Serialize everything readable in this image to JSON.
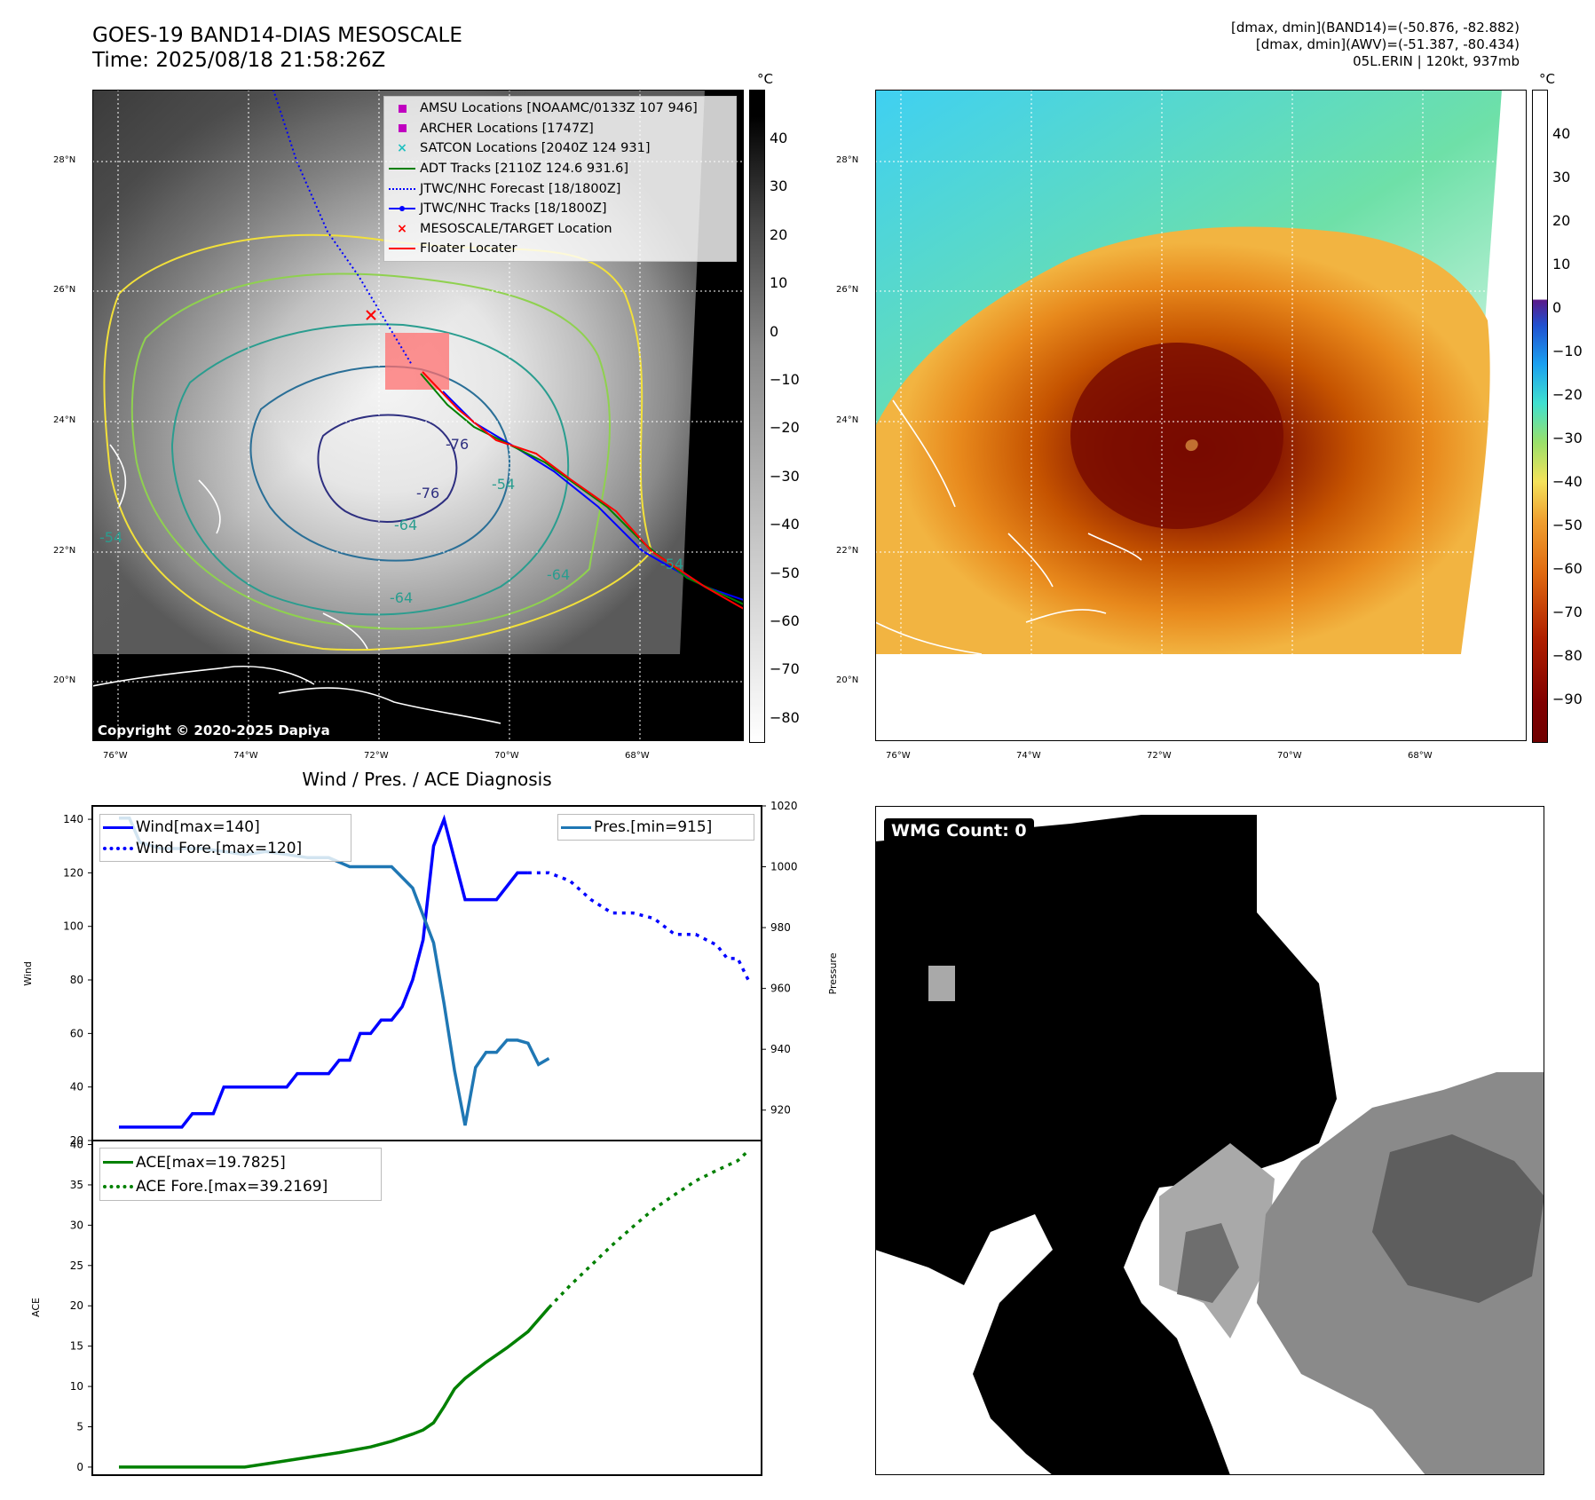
{
  "header": {
    "title_line1": "GOES-19 BAND14-DIAS MESOSCALE",
    "title_line2": "Time: 2025/08/18 21:58:26Z",
    "stats_line1": "[dmax, dmin](BAND14)=(-50.876, -82.882)",
    "stats_line2": "[dmax, dmin](AWV)=(-51.387, -80.434)",
    "stats_line3": "05L.ERIN | 120kt, 937mb"
  },
  "map_left": {
    "copyright": "Copyright © 2020-2025 Dapiya",
    "lat_labels": [
      "28°N",
      "26°N",
      "24°N",
      "22°N",
      "20°N"
    ],
    "lon_labels": [
      "76°W",
      "74°W",
      "72°W",
      "70°W",
      "68°W"
    ],
    "contour_labels": [
      "-76",
      "-76",
      "-64",
      "-64",
      "-64",
      "-54",
      "-54",
      "-54"
    ],
    "legend": [
      {
        "label": "AMSU Locations [NOAAMC/0133Z 107 946]",
        "symbol": "square",
        "color": "#c000c0"
      },
      {
        "label": "ARCHER Locations [1747Z]",
        "symbol": "square",
        "color": "#c000c0"
      },
      {
        "label": "SATCON Locations [2040Z 124 931]",
        "symbol": "x",
        "color": "#20c0c0"
      },
      {
        "label": "ADT Tracks [2110Z 124.6 931.6]",
        "symbol": "line",
        "color": "#008000"
      },
      {
        "label": "JTWC/NHC Forecast [18/1800Z]",
        "symbol": "dotted",
        "color": "#0000ff"
      },
      {
        "label": "JTWC/NHC Tracks [18/1800Z]",
        "symbol": "line-dot",
        "color": "#0000ff"
      },
      {
        "label": "MESOSCALE/TARGET Location",
        "symbol": "x",
        "color": "#ff0000"
      },
      {
        "label": "Floater Locater",
        "symbol": "line",
        "color": "#ff0000"
      }
    ],
    "colorbar": {
      "unit": "°C",
      "ticks": [
        "40",
        "30",
        "20",
        "10",
        "0",
        "−10",
        "−20",
        "−30",
        "−40",
        "−50",
        "−60",
        "−70",
        "−80"
      ]
    }
  },
  "map_right": {
    "lat_labels": [
      "28°N",
      "26°N",
      "24°N",
      "22°N",
      "20°N"
    ],
    "lon_labels": [
      "76°W",
      "74°W",
      "72°W",
      "70°W",
      "68°W"
    ],
    "colorbar": {
      "unit": "°C",
      "ticks": [
        "40",
        "30",
        "20",
        "10",
        "0",
        "−10",
        "−20",
        "−30",
        "−40",
        "−50",
        "−60",
        "−70",
        "−80",
        "−90"
      ]
    }
  },
  "wmg": {
    "label": "WMG Count: 0"
  },
  "chart_data": [
    {
      "type": "line",
      "title": "Wind / Pres. / ACE Diagnosis",
      "ylabel": "Wind",
      "ylabel_right": "Pressure",
      "ylim": [
        20,
        145
      ],
      "ylim_right": [
        910,
        1020
      ],
      "yticks": [
        "20",
        "40",
        "60",
        "80",
        "100",
        "120",
        "140"
      ],
      "yticks_right": [
        "920",
        "940",
        "960",
        "980",
        "1000",
        "1020"
      ],
      "x_count": 60,
      "series": [
        {
          "name": "Wind[max=140]",
          "axis": "left",
          "color": "#0000ff",
          "style": "solid",
          "points": [
            [
              0,
              25
            ],
            [
              3,
              25
            ],
            [
              4,
              25
            ],
            [
              5,
              25
            ],
            [
              6,
              25
            ],
            [
              7,
              30
            ],
            [
              8,
              30
            ],
            [
              9,
              30
            ],
            [
              10,
              40
            ],
            [
              11,
              40
            ],
            [
              12,
              40
            ],
            [
              13,
              40
            ],
            [
              14,
              40
            ],
            [
              15,
              40
            ],
            [
              16,
              40
            ],
            [
              17,
              45
            ],
            [
              18,
              45
            ],
            [
              19,
              45
            ],
            [
              20,
              45
            ],
            [
              21,
              50
            ],
            [
              22,
              50
            ],
            [
              23,
              60
            ],
            [
              24,
              60
            ],
            [
              25,
              65
            ],
            [
              26,
              65
            ],
            [
              27,
              70
            ],
            [
              28,
              80
            ],
            [
              29,
              95
            ],
            [
              30,
              130
            ],
            [
              31,
              140
            ],
            [
              32,
              125
            ],
            [
              33,
              110
            ],
            [
              34,
              110
            ],
            [
              35,
              110
            ],
            [
              36,
              110
            ],
            [
              37,
              115
            ],
            [
              38,
              120
            ],
            [
              39,
              120
            ]
          ]
        },
        {
          "name": "Wind Fore.[max=120]",
          "axis": "left",
          "color": "#0000ff",
          "style": "dotted",
          "points": [
            [
              39,
              120
            ],
            [
              41,
              120
            ],
            [
              43,
              117
            ],
            [
              45,
              110
            ],
            [
              47,
              105
            ],
            [
              49,
              105
            ],
            [
              51,
              103
            ],
            [
              53,
              97
            ],
            [
              55,
              97
            ],
            [
              57,
              93
            ],
            [
              58,
              88
            ],
            [
              59,
              88
            ],
            [
              60,
              80
            ]
          ]
        },
        {
          "name": "Pres.[min=915]",
          "axis": "right",
          "color": "#1f77b4",
          "style": "solid",
          "points": [
            [
              0,
              1016
            ],
            [
              1,
              1016
            ],
            [
              2,
              1008
            ],
            [
              4,
              1006
            ],
            [
              6,
              1006
            ],
            [
              8,
              1006
            ],
            [
              10,
              1005
            ],
            [
              12,
              1004
            ],
            [
              14,
              1005
            ],
            [
              16,
              1004
            ],
            [
              18,
              1003
            ],
            [
              20,
              1003
            ],
            [
              22,
              1000
            ],
            [
              24,
              1000
            ],
            [
              26,
              1000
            ],
            [
              28,
              993
            ],
            [
              30,
              975
            ],
            [
              31,
              955
            ],
            [
              32,
              933
            ],
            [
              33,
              915
            ],
            [
              34,
              934
            ],
            [
              35,
              939
            ],
            [
              36,
              939
            ],
            [
              37,
              943
            ],
            [
              38,
              943
            ],
            [
              39,
              942
            ],
            [
              40,
              935
            ],
            [
              41,
              937
            ]
          ]
        }
      ]
    },
    {
      "type": "line",
      "ylabel": "ACE",
      "ylim": [
        -1,
        40.5
      ],
      "yticks": [
        "0",
        "5",
        "10",
        "15",
        "20",
        "25",
        "30",
        "35",
        "40"
      ],
      "x_count": 60,
      "series": [
        {
          "name": "ACE[max=19.7825]",
          "color": "#008000",
          "style": "solid",
          "points": [
            [
              0,
              0
            ],
            [
              3,
              0
            ],
            [
              6,
              0
            ],
            [
              9,
              0
            ],
            [
              12,
              0
            ],
            [
              15,
              0.6
            ],
            [
              18,
              1.2
            ],
            [
              21,
              1.8
            ],
            [
              24,
              2.5
            ],
            [
              26,
              3.2
            ],
            [
              28,
              4.1
            ],
            [
              29,
              4.6
            ],
            [
              30,
              5.5
            ],
            [
              31,
              7.5
            ],
            [
              32,
              9.7
            ],
            [
              33,
              11.0
            ],
            [
              35,
              13.0
            ],
            [
              37,
              14.8
            ],
            [
              39,
              16.8
            ],
            [
              41,
              19.78
            ]
          ]
        },
        {
          "name": "ACE Fore.[max=39.2169]",
          "color": "#008000",
          "style": "dotted",
          "points": [
            [
              41,
              19.78
            ],
            [
              43,
              22.5
            ],
            [
              45,
              25.0
            ],
            [
              47,
              27.5
            ],
            [
              49,
              29.8
            ],
            [
              51,
              32.0
            ],
            [
              53,
              33.8
            ],
            [
              55,
              35.5
            ],
            [
              57,
              36.8
            ],
            [
              59,
              38.0
            ],
            [
              60,
              39.22
            ]
          ]
        }
      ]
    }
  ]
}
